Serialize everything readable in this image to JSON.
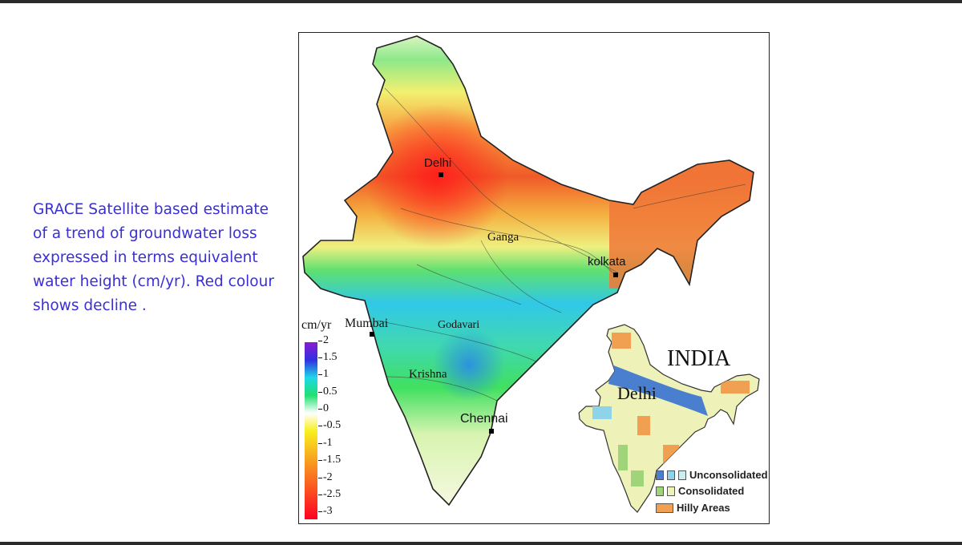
{
  "caption": "GRACE Satellite based estimate of a trend of groundwater loss  expressed in terms equivalent water height (cm/yr). Red colour shows decline .",
  "map": {
    "cities": {
      "delhi": "Delhi",
      "kolkata": "kolkata",
      "mumbai": "Mumbai",
      "chennai": "Chennai"
    },
    "rivers": {
      "ganga": "Ganga",
      "godavari": "Godavari",
      "krishna": "Krishna"
    },
    "colorbar": {
      "unit": "cm/yr",
      "ticks": [
        "2",
        "1.5",
        "1",
        "0.5",
        "0",
        "-0.5",
        "-1",
        "-1.5",
        "-2",
        "-2.5",
        "-3"
      ],
      "range": [
        -3,
        2
      ]
    },
    "inset": {
      "title": "INDIA",
      "city": "Delhi",
      "legend": [
        "Unconsolidated",
        "Consolidated",
        "Hilly Areas"
      ],
      "colors": {
        "unconsolidated": "#4a7fd0",
        "consolidated": "#9fd47a",
        "hilly": "#f0a050"
      }
    }
  }
}
